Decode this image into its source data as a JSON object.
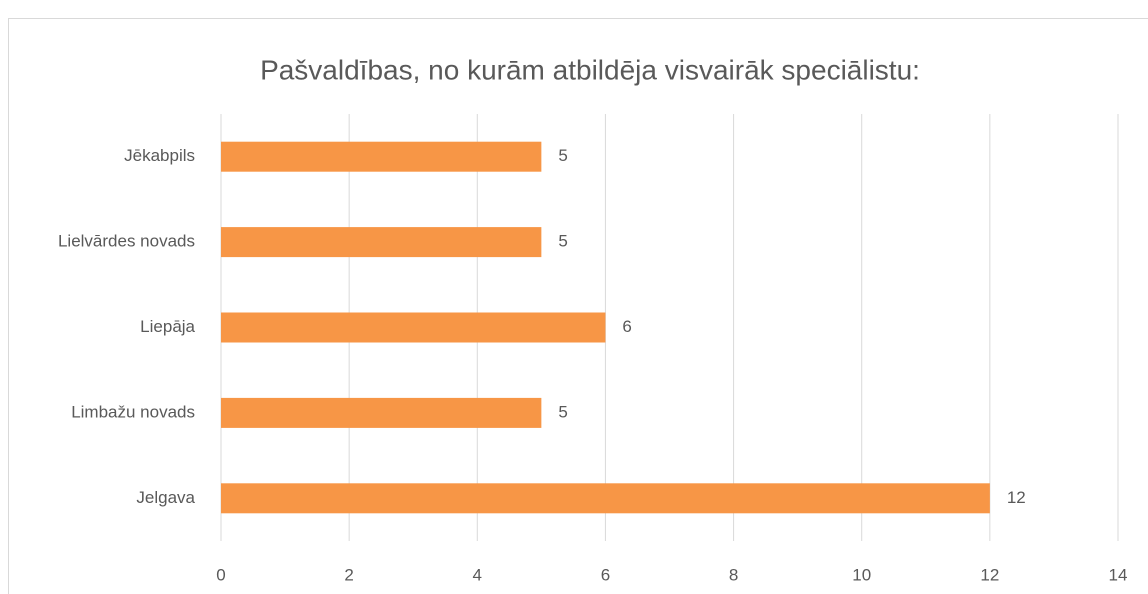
{
  "chart_data": {
    "type": "bar",
    "orientation": "horizontal",
    "title": "Pašvaldības, no kurām atbildēja visvairāk speciālistu:",
    "categories": [
      "Jēkabpils",
      "Lielvārdes novads",
      "Liepāja",
      "Limbažu novads",
      "Jelgava"
    ],
    "values": [
      5,
      5,
      6,
      5,
      12
    ],
    "color": "#f79646",
    "xlim": [
      0,
      14
    ],
    "xticks": [
      0,
      2,
      4,
      6,
      8,
      10,
      12,
      14
    ],
    "grid": true,
    "data_labels": true
  }
}
